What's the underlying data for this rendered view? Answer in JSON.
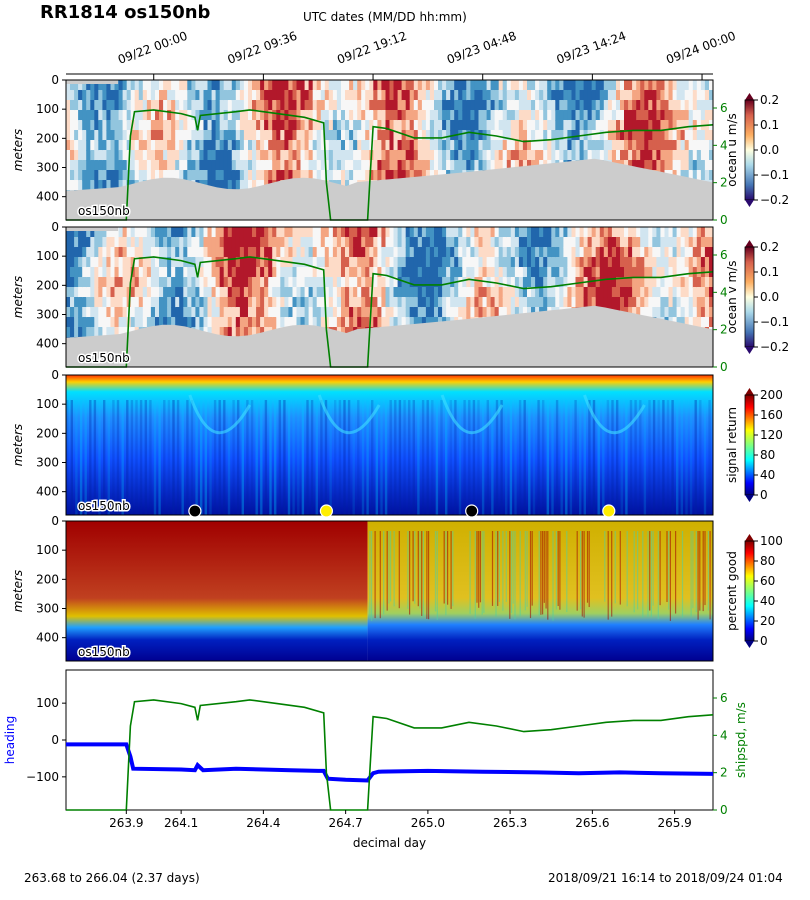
{
  "title": "RR1814 os150nb",
  "top_axis_label": "UTC dates (MM/DD hh:mm)",
  "footer": {
    "left": "263.68 to 266.04 (2.37 days)",
    "right": "2018/09/21 16:14 to 2018/09/24 01:04"
  },
  "colors": {
    "bathymetry": "#cccccc",
    "ship_speed": "#008000",
    "heading": "#0000ff",
    "station_dark": "#000000",
    "station_light": "#ffee00"
  },
  "chart_data": [
    {
      "type": "heatmap",
      "panel": "ocean u",
      "ylabel": "meters",
      "y_ticks": [
        "0",
        "100",
        "200",
        "300",
        "400"
      ],
      "ylim": [
        480,
        0
      ],
      "colorbar_label": "ocean u m/s",
      "colorbar_ticks": [
        "0.2",
        "0.1",
        "0.0",
        "−0.1",
        "−0.2"
      ],
      "colorbar_range": [
        -0.2,
        0.2
      ],
      "colormap": "RdYlBu_r",
      "right_axis_ticks": [
        "6",
        "4",
        "2",
        "0"
      ],
      "inset_label": "os150nb"
    },
    {
      "type": "heatmap",
      "panel": "ocean v",
      "ylabel": "meters",
      "y_ticks": [
        "0",
        "100",
        "200",
        "300",
        "400"
      ],
      "ylim": [
        480,
        0
      ],
      "colorbar_label": "ocean v m/s",
      "colorbar_ticks": [
        "0.2",
        "0.1",
        "0.0",
        "−0.1",
        "−0.2"
      ],
      "colorbar_range": [
        -0.2,
        0.2
      ],
      "colormap": "RdYlBu_r",
      "right_axis_ticks": [
        "6",
        "4",
        "2",
        "0"
      ],
      "inset_label": "os150nb"
    },
    {
      "type": "heatmap",
      "panel": "signal return",
      "ylabel": "meters",
      "y_ticks": [
        "0",
        "100",
        "200",
        "300",
        "400"
      ],
      "ylim": [
        480,
        0
      ],
      "colorbar_label": "signal return",
      "colorbar_ticks": [
        "200",
        "160",
        "120",
        "80",
        "40",
        "0"
      ],
      "colorbar_range": [
        0,
        210
      ],
      "colormap": "jet",
      "inset_label": "os150nb",
      "station_markers": [
        {
          "x": 264.15,
          "color": "dark"
        },
        {
          "x": 264.63,
          "color": "light"
        },
        {
          "x": 265.16,
          "color": "dark"
        },
        {
          "x": 265.66,
          "color": "light"
        }
      ]
    },
    {
      "type": "heatmap",
      "panel": "percent good",
      "ylabel": "meters",
      "y_ticks": [
        "0",
        "100",
        "200",
        "300",
        "400"
      ],
      "ylim": [
        480,
        0
      ],
      "colorbar_label": "percent good",
      "colorbar_ticks": [
        "100",
        "80",
        "60",
        "40",
        "20",
        "0"
      ],
      "colorbar_range": [
        0,
        100
      ],
      "colormap": "jet",
      "inset_label": "os150nb"
    },
    {
      "type": "line",
      "panel": "heading and ship speed",
      "xlabel": "decimal day",
      "x_ticks": [
        "263.9",
        "264.1",
        "264.4",
        "264.7",
        "265.0",
        "265.3",
        "265.6",
        "265.9"
      ],
      "xlim": [
        263.68,
        266.04
      ],
      "ylabel_left": "heading",
      "ylabel_right": "shipspd, m/s",
      "left_ticks": [
        "100",
        "0",
        "−100"
      ],
      "ylim_left": [
        -190,
        190
      ],
      "right_ticks": [
        "6",
        "4",
        "2",
        "0"
      ],
      "ylim_right": [
        0,
        7.5
      ],
      "top_ticks": [
        "09/22 00:00",
        "09/22 09:36",
        "09/22 19:12",
        "09/23 04:48",
        "09/23 14:24",
        "09/24 00:00"
      ],
      "series": [
        {
          "name": "heading",
          "points": [
            [
              263.68,
              -12
            ],
            [
              263.9,
              -12
            ],
            [
              263.915,
              -45
            ],
            [
              263.925,
              -78
            ],
            [
              264.1,
              -80
            ],
            [
              264.15,
              -82
            ],
            [
              264.16,
              -68
            ],
            [
              264.18,
              -82
            ],
            [
              264.3,
              -78
            ],
            [
              264.4,
              -80
            ],
            [
              264.5,
              -82
            ],
            [
              264.6,
              -84
            ],
            [
              264.62,
              -84
            ],
            [
              264.635,
              -105
            ],
            [
              264.7,
              -108
            ],
            [
              264.78,
              -110
            ],
            [
              264.8,
              -90
            ],
            [
              264.82,
              -86
            ],
            [
              265.0,
              -84
            ],
            [
              265.2,
              -86
            ],
            [
              265.4,
              -88
            ],
            [
              265.55,
              -90
            ],
            [
              265.7,
              -88
            ],
            [
              265.85,
              -90
            ],
            [
              266.04,
              -92
            ]
          ]
        },
        {
          "name": "shipspd",
          "points": [
            [
              263.68,
              0
            ],
            [
              263.9,
              0
            ],
            [
              263.915,
              4.5
            ],
            [
              263.93,
              5.8
            ],
            [
              264.0,
              5.9
            ],
            [
              264.1,
              5.7
            ],
            [
              264.15,
              5.5
            ],
            [
              264.16,
              4.8
            ],
            [
              264.17,
              5.6
            ],
            [
              264.3,
              5.8
            ],
            [
              264.35,
              5.9
            ],
            [
              264.45,
              5.7
            ],
            [
              264.55,
              5.5
            ],
            [
              264.62,
              5.2
            ],
            [
              264.63,
              2.0
            ],
            [
              264.645,
              0
            ],
            [
              264.78,
              0
            ],
            [
              264.79,
              2.5
            ],
            [
              264.8,
              5.0
            ],
            [
              264.85,
              4.9
            ],
            [
              264.95,
              4.4
            ],
            [
              265.05,
              4.4
            ],
            [
              265.15,
              4.7
            ],
            [
              265.25,
              4.5
            ],
            [
              265.35,
              4.2
            ],
            [
              265.45,
              4.3
            ],
            [
              265.55,
              4.5
            ],
            [
              265.65,
              4.7
            ],
            [
              265.75,
              4.8
            ],
            [
              265.85,
              4.8
            ],
            [
              265.95,
              5.0
            ],
            [
              266.04,
              5.1
            ]
          ]
        }
      ]
    }
  ]
}
